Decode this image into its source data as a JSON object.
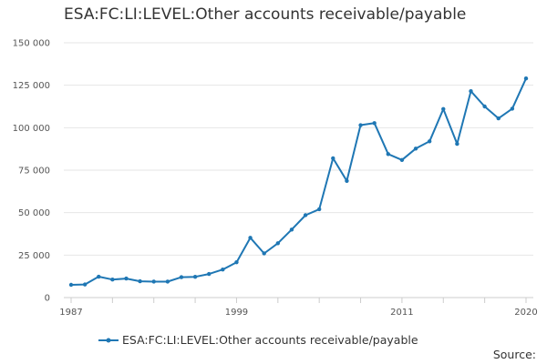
{
  "chart_data": {
    "type": "line",
    "title": "ESA:FC:LI:LEVEL:Other accounts receivable/payable",
    "xlabel": "",
    "ylabel": "",
    "xlim": [
      1987,
      2020
    ],
    "ylim": [
      0,
      150000
    ],
    "x_ticks": [
      1987,
      1999,
      2011,
      2020
    ],
    "x_minor_ticks": [
      1987,
      1990,
      1993,
      1996,
      1999,
      2002,
      2005,
      2008,
      2011,
      2014,
      2017,
      2020
    ],
    "y_ticks": [
      0,
      25000,
      50000,
      75000,
      100000,
      125000,
      150000
    ],
    "y_tick_labels": [
      "0",
      "25 000",
      "50 000",
      "75 000",
      "100 000",
      "125 000",
      "150 000"
    ],
    "grid": "horizontal",
    "legend_position": "bottom",
    "color": "#1f77b4",
    "series": [
      {
        "name": "ESA:FC:LI:LEVEL:Other accounts receivable/payable",
        "x": [
          1987,
          1988,
          1989,
          1990,
          1991,
          1992,
          1993,
          1994,
          1995,
          1996,
          1997,
          1998,
          1999,
          2000,
          2001,
          2002,
          2003,
          2004,
          2005,
          2006,
          2007,
          2008,
          2009,
          2010,
          2011,
          2012,
          2013,
          2014,
          2015,
          2016,
          2017,
          2018,
          2019,
          2020
        ],
        "values": [
          7500,
          7700,
          12300,
          10600,
          11200,
          9600,
          9400,
          9400,
          12000,
          12200,
          13900,
          16500,
          20800,
          35200,
          26000,
          32000,
          40000,
          48500,
          52000,
          82000,
          68700,
          101500,
          102700,
          84500,
          81000,
          87700,
          92000,
          111000,
          90500,
          121500,
          112500,
          105500,
          111200,
          129000
        ]
      }
    ]
  },
  "legend_label": "ESA:FC:LI:LEVEL:Other accounts receivable/payable",
  "source_label": "Source:"
}
